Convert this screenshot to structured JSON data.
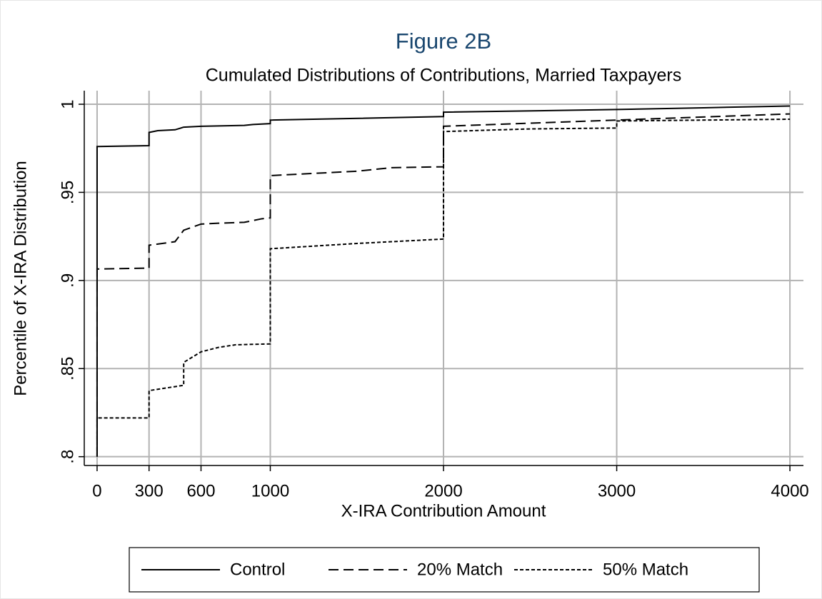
{
  "chart_data": {
    "type": "line",
    "title": "Figure 2B",
    "subtitle": "Cumulated Distributions of Contributions, Married Taxpayers",
    "x_label": "X-IRA Contribution Amount",
    "y_label": "Percentile of X-IRA Distribution",
    "xlim": [
      -74,
      4078
    ],
    "ylim": [
      0.795,
      1.0077
    ],
    "xticks": [
      0,
      300,
      600,
      1000,
      2000,
      3000,
      4000
    ],
    "yticks": [
      {
        "value": 0.8,
        "label": ".8"
      },
      {
        "value": 0.85,
        "label": ".85"
      },
      {
        "value": 0.9,
        "label": ".9"
      },
      {
        "value": 0.95,
        "label": ".95"
      },
      1
    ],
    "grid": true,
    "legend": "bottom",
    "series": [
      {
        "name": "Control",
        "color": "#000000",
        "dash": "solid",
        "x": [
          0,
          0,
          300,
          300,
          350,
          450,
          500,
          600,
          850,
          900,
          1000,
          1000,
          2000,
          2000,
          3000,
          3500,
          4000
        ],
        "values": [
          0.8,
          0.976,
          0.9765,
          0.984,
          0.985,
          0.9855,
          0.987,
          0.9875,
          0.988,
          0.9885,
          0.989,
          0.991,
          0.993,
          0.9955,
          0.997,
          0.998,
          0.999
        ]
      },
      {
        "name": "20% Match",
        "color": "#000000",
        "dash": "long",
        "x": [
          0,
          0,
          300,
          300,
          450,
          500,
          600,
          700,
          850,
          950,
          1000,
          1000,
          1500,
          1700,
          2000,
          2000,
          3000,
          4000
        ],
        "values": [
          0.8,
          0.9065,
          0.907,
          0.92,
          0.922,
          0.9285,
          0.932,
          0.9325,
          0.933,
          0.935,
          0.9355,
          0.9595,
          0.962,
          0.964,
          0.9645,
          0.9875,
          0.991,
          0.9945
        ]
      },
      {
        "name": "50% Match",
        "color": "#000000",
        "dash": "short",
        "x": [
          0,
          0,
          300,
          300,
          400,
          500,
          500,
          600,
          700,
          800,
          1000,
          1000,
          1500,
          1700,
          2000,
          2000,
          2500,
          3000,
          3000,
          4000
        ],
        "values": [
          0.8,
          0.822,
          0.822,
          0.8375,
          0.839,
          0.8405,
          0.8535,
          0.8595,
          0.862,
          0.8635,
          0.864,
          0.918,
          0.921,
          0.922,
          0.9235,
          0.9845,
          0.986,
          0.9865,
          0.9905,
          0.9915
        ]
      }
    ]
  }
}
